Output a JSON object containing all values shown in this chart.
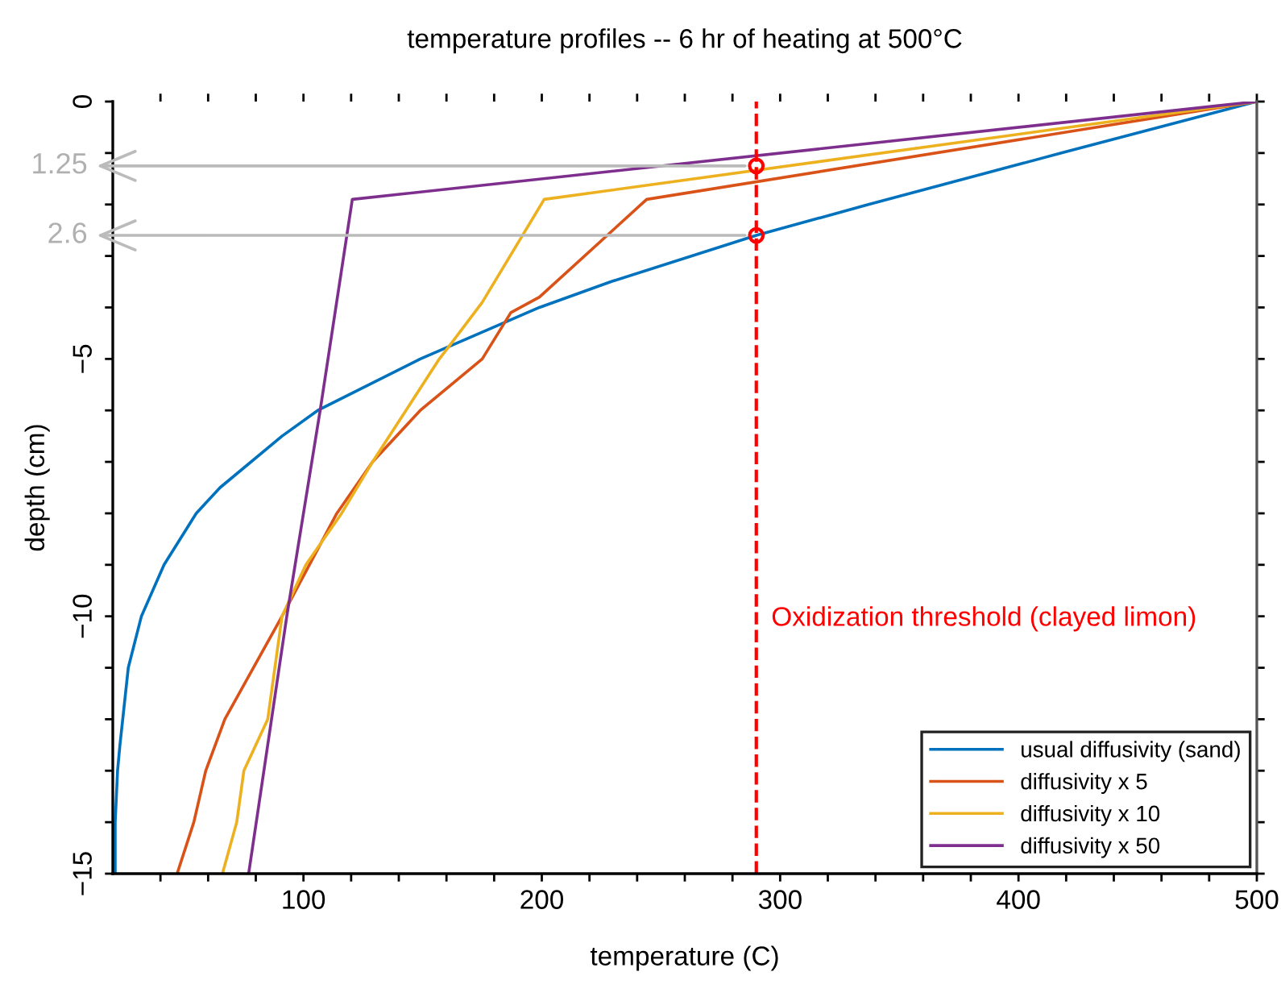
{
  "chart_data": {
    "type": "line",
    "title": "temperature profiles -- 6 hr of heating at 500°C",
    "xlabel": "temperature (C)",
    "ylabel": "depth (cm)",
    "xlim": [
      20,
      500
    ],
    "ylim": [
      -15,
      0
    ],
    "xticks": [
      {
        "value": 40,
        "label": null
      },
      {
        "value": 60,
        "label": null
      },
      {
        "value": 80,
        "label": null
      },
      100,
      {
        "value": 120,
        "label": null
      },
      {
        "value": 140,
        "label": null
      },
      {
        "value": 160,
        "label": null
      },
      {
        "value": 180,
        "label": null
      },
      200,
      {
        "value": 220,
        "label": null
      },
      {
        "value": 240,
        "label": null
      },
      {
        "value": 260,
        "label": null
      },
      {
        "value": 280,
        "label": null
      },
      300,
      {
        "value": 320,
        "label": null
      },
      {
        "value": 340,
        "label": null
      },
      {
        "value": 360,
        "label": null
      },
      {
        "value": 380,
        "label": null
      },
      400,
      {
        "value": 420,
        "label": null
      },
      {
        "value": 440,
        "label": null
      },
      {
        "value": 460,
        "label": null
      },
      {
        "value": 480,
        "label": null
      },
      500
    ],
    "yticks": [
      {
        "value": -15,
        "label": "−15"
      },
      {
        "value": -14,
        "label": null
      },
      {
        "value": -13,
        "label": null
      },
      {
        "value": -12,
        "label": null
      },
      {
        "value": -11,
        "label": null
      },
      {
        "value": -10,
        "label": "−10"
      },
      {
        "value": -9,
        "label": null
      },
      {
        "value": -8,
        "label": null
      },
      {
        "value": -7,
        "label": null
      },
      {
        "value": -6,
        "label": null
      },
      {
        "value": -5,
        "label": "−5"
      },
      {
        "value": -4,
        "label": null
      },
      {
        "value": -3,
        "label": null
      },
      {
        "value": -2,
        "label": null
      },
      {
        "value": -1,
        "label": null
      },
      0
    ],
    "grid": false,
    "legend": "bottom right",
    "line_style": "solid",
    "marker": "none",
    "series": [
      {
        "name": "usual diffusivity (sand)",
        "color": "#0072bd",
        "x": [
          500,
          418,
          337,
          290,
          229,
          199,
          149,
          106,
          91,
          65,
          55,
          41.5,
          32,
          26.5,
          23,
          22,
          21,
          21
        ],
        "values": [
          0,
          -1,
          -2,
          -2.6,
          -3.5,
          -4,
          -5,
          -6,
          -6.5,
          -7.5,
          -8,
          -9,
          -10,
          -11,
          -12.5,
          -13,
          -14,
          -15
        ]
      },
      {
        "name": "diffusivity x 5",
        "color": "#d95319",
        "x": [
          500,
          244,
          199,
          187,
          175,
          149,
          129,
          114,
          91,
          67,
          59,
          54,
          47
        ],
        "values": [
          0,
          -1.9,
          -3.8,
          -4.1,
          -5,
          -6,
          -7,
          -8,
          -10,
          -12,
          -13,
          -14,
          -15
        ]
      },
      {
        "name": "diffusivity x 10",
        "color": "#edb120",
        "x": [
          500,
          201,
          175,
          162,
          157,
          143,
          129,
          116,
          101,
          91,
          85,
          75,
          72,
          66
        ],
        "values": [
          0,
          -1.9,
          -3.9,
          -4.7,
          -5,
          -6,
          -7,
          -8,
          -9,
          -10,
          -12,
          -13,
          -14,
          -15
        ]
      },
      {
        "name": "diffusivity x 50",
        "color": "#7e2f8e",
        "x": [
          500,
          120.5,
          107,
          93,
          77
        ],
        "values": [
          0,
          -1.9,
          -6,
          -10,
          -15
        ]
      },
      {
        "type": "scatter",
        "color": "#ff0000",
        "marker": "circle",
        "x": [
          290,
          290
        ],
        "values": [
          -1.25,
          -2.6
        ]
      }
    ],
    "ref_lines": [
      {
        "axis": "x",
        "value": 290,
        "label": "Oxidization threshold (clayed limon)",
        "color": "#ff0000",
        "line_style": "dashed"
      }
    ],
    "annotations": [
      {
        "text": "1.25",
        "x": 290,
        "y": -1.25
      },
      {
        "text": "2.6",
        "x": 290,
        "y": -2.6
      }
    ]
  }
}
